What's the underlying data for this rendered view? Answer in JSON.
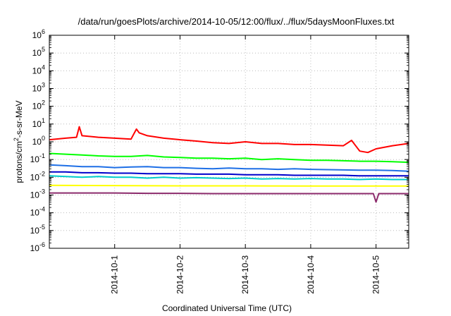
{
  "chart_data": {
    "type": "line",
    "title": "/data/run/goesPlots/archive/2014-10-05/12:00/flux/../flux/5daysMoonFluxes.txt",
    "xlabel": "Coordinated Universal Time (UTC)",
    "ylabel_prefix": "protons/cm",
    "ylabel_sup": "2",
    "ylabel_suffix": "-s-sr-MeV",
    "x_unit": "days",
    "xlim": [
      "2014-09-30T00:00",
      "2014-10-05T12:00"
    ],
    "x_ticks": [
      "2014-10-1",
      "2014-10-2",
      "2014-10-3",
      "2014-10-4",
      "2014-10-5"
    ],
    "y_scale": "log",
    "ylim": [
      1e-06,
      1000000.0
    ],
    "y_ticks": [
      {
        "base": "10",
        "exp": "-6",
        "value": 1e-06
      },
      {
        "base": "10",
        "exp": "-5",
        "value": 1e-05
      },
      {
        "base": "10",
        "exp": "-4",
        "value": 0.0001
      },
      {
        "base": "10",
        "exp": "-3",
        "value": 0.001
      },
      {
        "base": "10",
        "exp": "-2",
        "value": 0.01
      },
      {
        "base": "10",
        "exp": "-1",
        "value": 0.1
      },
      {
        "base": "10",
        "exp": "0",
        "value": 1.0
      },
      {
        "base": "10",
        "exp": "1",
        "value": 10.0
      },
      {
        "base": "10",
        "exp": "2",
        "value": 100.0
      },
      {
        "base": "10",
        "exp": "3",
        "value": 1000.0
      },
      {
        "base": "10",
        "exp": "4",
        "value": 10000.0
      },
      {
        "base": "10",
        "exp": "5",
        "value": 100000.0
      },
      {
        "base": "10",
        "exp": "6",
        "value": 1000000.0
      }
    ],
    "grid": true,
    "legend": "none",
    "series": [
      {
        "color": "#ff0000",
        "x": [
          "2014-09-30T00:00",
          "2014-09-30T06:00",
          "2014-09-30T10:00",
          "2014-09-30T11:00",
          "2014-09-30T12:00",
          "2014-09-30T18:00",
          "2014-10-01T00:00",
          "2014-10-01T06:00",
          "2014-10-01T08:00",
          "2014-10-01T09:00",
          "2014-10-01T12:00",
          "2014-10-01T18:00",
          "2014-10-02T00:00",
          "2014-10-02T06:00",
          "2014-10-02T12:00",
          "2014-10-02T18:00",
          "2014-10-03T00:00",
          "2014-10-03T06:00",
          "2014-10-03T12:00",
          "2014-10-03T18:00",
          "2014-10-04T00:00",
          "2014-10-04T06:00",
          "2014-10-04T12:00",
          "2014-10-04T15:00",
          "2014-10-04T18:00",
          "2014-10-04T21:00",
          "2014-10-05T00:00",
          "2014-10-05T06:00",
          "2014-10-05T12:00"
        ],
        "y": [
          1.3,
          1.6,
          1.8,
          7,
          2.2,
          1.8,
          1.6,
          1.4,
          5.2,
          3.2,
          2.2,
          1.6,
          1.3,
          1.1,
          0.9,
          0.8,
          1.0,
          0.8,
          0.8,
          0.7,
          0.7,
          0.65,
          0.6,
          1.2,
          0.3,
          0.25,
          0.4,
          0.6,
          0.8
        ]
      },
      {
        "color": "#00ff00",
        "x": [
          "2014-09-30T00:00",
          "2014-09-30T06:00",
          "2014-09-30T12:00",
          "2014-09-30T18:00",
          "2014-10-01T00:00",
          "2014-10-01T06:00",
          "2014-10-01T12:00",
          "2014-10-01T18:00",
          "2014-10-02T00:00",
          "2014-10-02T06:00",
          "2014-10-02T12:00",
          "2014-10-02T18:00",
          "2014-10-03T00:00",
          "2014-10-03T06:00",
          "2014-10-03T12:00",
          "2014-10-03T18:00",
          "2014-10-04T00:00",
          "2014-10-04T06:00",
          "2014-10-04T12:00",
          "2014-10-04T18:00",
          "2014-10-05T00:00",
          "2014-10-05T06:00",
          "2014-10-05T12:00"
        ],
        "y": [
          0.22,
          0.2,
          0.18,
          0.16,
          0.15,
          0.15,
          0.17,
          0.14,
          0.13,
          0.12,
          0.12,
          0.11,
          0.12,
          0.1,
          0.11,
          0.1,
          0.09,
          0.09,
          0.085,
          0.08,
          0.08,
          0.075,
          0.07
        ]
      },
      {
        "color": "#1e6fe6",
        "x": [
          "2014-09-30T00:00",
          "2014-09-30T06:00",
          "2014-09-30T12:00",
          "2014-09-30T18:00",
          "2014-10-01T00:00",
          "2014-10-01T06:00",
          "2014-10-01T12:00",
          "2014-10-01T18:00",
          "2014-10-02T00:00",
          "2014-10-02T06:00",
          "2014-10-02T12:00",
          "2014-10-02T18:00",
          "2014-10-03T00:00",
          "2014-10-03T06:00",
          "2014-10-03T12:00",
          "2014-10-03T18:00",
          "2014-10-04T00:00",
          "2014-10-04T06:00",
          "2014-10-04T12:00",
          "2014-10-04T18:00",
          "2014-10-05T00:00",
          "2014-10-05T06:00",
          "2014-10-05T12:00"
        ],
        "y": [
          0.05,
          0.045,
          0.04,
          0.04,
          0.035,
          0.038,
          0.04,
          0.035,
          0.035,
          0.032,
          0.03,
          0.033,
          0.03,
          0.03,
          0.028,
          0.03,
          0.028,
          0.027,
          0.026,
          0.025,
          0.025,
          0.024,
          0.022
        ]
      },
      {
        "color": "#00cccc",
        "x": [
          "2014-09-30T00:00",
          "2014-09-30T06:00",
          "2014-09-30T12:00",
          "2014-09-30T18:00",
          "2014-10-01T00:00",
          "2014-10-01T06:00",
          "2014-10-01T12:00",
          "2014-10-01T18:00",
          "2014-10-02T00:00",
          "2014-10-02T06:00",
          "2014-10-02T12:00",
          "2014-10-02T18:00",
          "2014-10-03T00:00",
          "2014-10-03T06:00",
          "2014-10-03T12:00",
          "2014-10-03T18:00",
          "2014-10-04T00:00",
          "2014-10-04T06:00",
          "2014-10-04T12:00",
          "2014-10-04T18:00",
          "2014-10-05T00:00",
          "2014-10-05T06:00",
          "2014-10-05T12:00"
        ],
        "y": [
          0.012,
          0.011,
          0.01,
          0.011,
          0.01,
          0.01,
          0.009,
          0.01,
          0.009,
          0.0095,
          0.009,
          0.0085,
          0.009,
          0.008,
          0.0085,
          0.008,
          0.0085,
          0.008,
          0.008,
          0.0075,
          0.008,
          0.0075,
          0.0075
        ]
      },
      {
        "color": "#0000cc",
        "x": [
          "2014-09-30T00:00",
          "2014-09-30T06:00",
          "2014-09-30T12:00",
          "2014-09-30T18:00",
          "2014-10-01T00:00",
          "2014-10-01T06:00",
          "2014-10-01T12:00",
          "2014-10-01T18:00",
          "2014-10-02T00:00",
          "2014-10-02T06:00",
          "2014-10-02T12:00",
          "2014-10-02T18:00",
          "2014-10-03T00:00",
          "2014-10-03T06:00",
          "2014-10-03T12:00",
          "2014-10-03T18:00",
          "2014-10-04T00:00",
          "2014-10-04T06:00",
          "2014-10-04T12:00",
          "2014-10-04T18:00",
          "2014-10-05T00:00",
          "2014-10-05T06:00",
          "2014-10-05T12:00"
        ],
        "y": [
          0.02,
          0.02,
          0.018,
          0.018,
          0.017,
          0.017,
          0.016,
          0.016,
          0.016,
          0.015,
          0.015,
          0.015,
          0.014,
          0.014,
          0.014,
          0.013,
          0.013,
          0.013,
          0.013,
          0.012,
          0.012,
          0.012,
          0.012
        ]
      },
      {
        "color": "#ffff00",
        "x": [
          "2014-09-30T00:00",
          "2014-10-01T00:00",
          "2014-10-02T00:00",
          "2014-10-03T00:00",
          "2014-10-04T00:00",
          "2014-10-05T00:00",
          "2014-10-05T12:00"
        ],
        "y": [
          0.0035,
          0.0034,
          0.0033,
          0.0033,
          0.0032,
          0.0032,
          0.0032
        ]
      },
      {
        "color": "#8b2a6b",
        "x": [
          "2014-09-30T00:00",
          "2014-09-30T12:00",
          "2014-10-01T00:00",
          "2014-10-01T12:00",
          "2014-10-02T00:00",
          "2014-10-02T12:00",
          "2014-10-03T00:00",
          "2014-10-03T12:00",
          "2014-10-04T00:00",
          "2014-10-04T12:00",
          "2014-10-04T23:00",
          "2014-10-05T00:00",
          "2014-10-05T01:00",
          "2014-10-05T06:00",
          "2014-10-05T12:00"
        ],
        "y": [
          0.0013,
          0.0013,
          0.0013,
          0.00125,
          0.00125,
          0.0012,
          0.0012,
          0.0012,
          0.0012,
          0.0012,
          0.0012,
          0.0004,
          0.0012,
          0.0012,
          0.0012
        ]
      }
    ]
  }
}
